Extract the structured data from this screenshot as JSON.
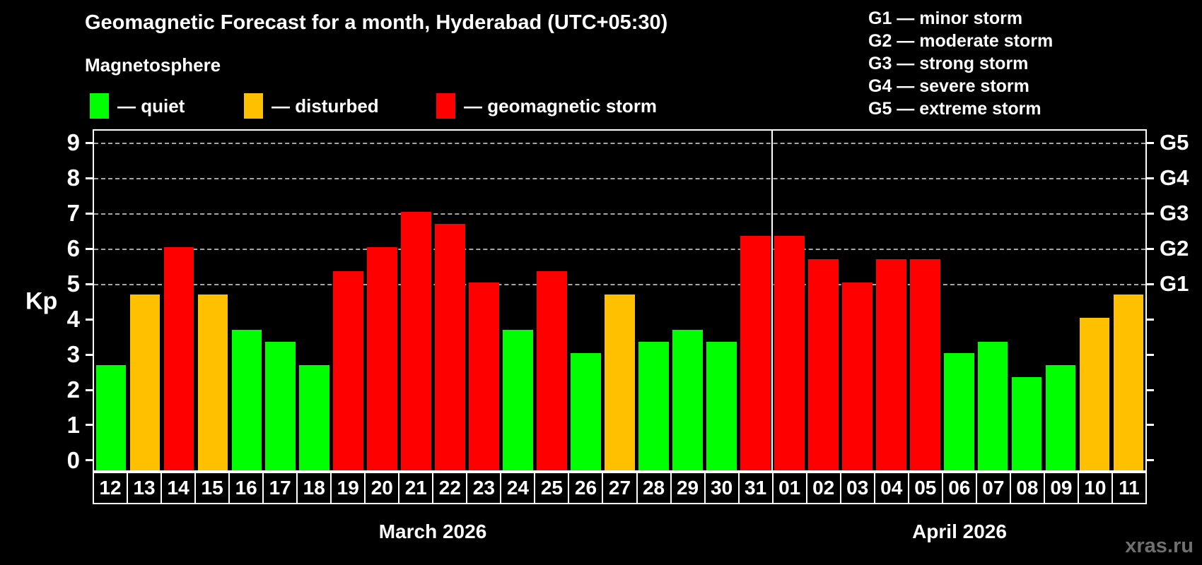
{
  "title": "Geomagnetic Forecast for a month, Hyderabad (UTC+05:30)",
  "subtitle": "Magnetosphere",
  "legend": {
    "quiet_label": "— quiet",
    "disturbed_label": "— disturbed",
    "storm_label": "— geomagnetic storm"
  },
  "storm_scale": [
    {
      "label": "G1 — minor storm"
    },
    {
      "label": "G2 — moderate storm"
    },
    {
      "label": "G3 — strong storm"
    },
    {
      "label": "G4 — severe storm"
    },
    {
      "label": "G5 — extreme storm"
    }
  ],
  "axis": {
    "kp_label": "Kp",
    "y_tick_labels": [
      "0",
      "1",
      "2",
      "3",
      "4",
      "5",
      "6",
      "7",
      "8",
      "9"
    ],
    "g_axis_labels": [
      "G1",
      "G2",
      "G3",
      "G4",
      "G5"
    ],
    "g_axis_values": [
      5,
      6,
      7,
      8,
      9
    ]
  },
  "months": [
    {
      "label": "March 2026"
    },
    {
      "label": "April 2026"
    }
  ],
  "watermark": "xras.ru",
  "colors": {
    "background": "#000000",
    "quiet": "#00ff00",
    "disturbed": "#ffc000",
    "storm": "#ff0000",
    "grid": "#a6a6a6",
    "axis": "#ffffff",
    "watermark": "#6f6f6f"
  },
  "chart_data": {
    "type": "bar",
    "title": "Geomagnetic Forecast for a month, Hyderabad (UTC+05:30)",
    "xlabel": "",
    "ylabel": "Kp",
    "ylim": [
      0,
      9.3
    ],
    "grid": "horizontal dashed at Kp 5,6,7,8,9 (G1..G5)",
    "legend_position": "top-left",
    "month_split_after_index": 19,
    "categories": [
      "12",
      "13",
      "14",
      "15",
      "16",
      "17",
      "18",
      "19",
      "20",
      "21",
      "22",
      "23",
      "24",
      "25",
      "26",
      "27",
      "28",
      "29",
      "30",
      "31",
      "01",
      "02",
      "03",
      "04",
      "05",
      "06",
      "07",
      "08",
      "09",
      "10",
      "11"
    ],
    "category_months": [
      "March 2026 for days 12-31",
      "April 2026 for days 01-11"
    ],
    "values": [
      2.67,
      4.67,
      6,
      4.67,
      3.67,
      3.33,
      2.67,
      5.33,
      6,
      7,
      6.67,
      5,
      3.67,
      5.33,
      3,
      4.67,
      3.33,
      3.67,
      3.33,
      6.33,
      6.33,
      5.67,
      5,
      5.67,
      5.67,
      3,
      3.33,
      2.33,
      2.67,
      4,
      4.67
    ],
    "statuses": [
      "quiet",
      "disturbed",
      "storm",
      "disturbed",
      "quiet",
      "quiet",
      "quiet",
      "storm",
      "storm",
      "storm",
      "storm",
      "storm",
      "quiet",
      "storm",
      "quiet",
      "disturbed",
      "quiet",
      "quiet",
      "quiet",
      "storm",
      "storm",
      "storm",
      "storm",
      "storm",
      "storm",
      "quiet",
      "quiet",
      "quiet",
      "quiet",
      "disturbed",
      "disturbed"
    ]
  }
}
